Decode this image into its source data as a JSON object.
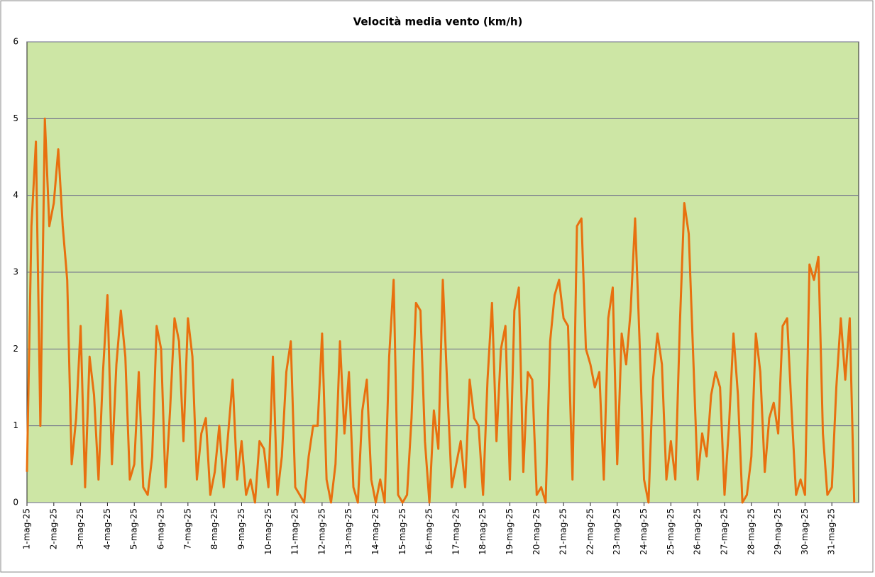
{
  "chart_data": {
    "type": "line",
    "title": "Velocità  media vento (km/h)",
    "categories": [
      "1-mag-25",
      null,
      null,
      null,
      null,
      null,
      "2-mag-25",
      null,
      null,
      null,
      null,
      null,
      "3-mag-25",
      null,
      null,
      null,
      null,
      null,
      "4-mag-25",
      null,
      null,
      null,
      null,
      null,
      "5-mag-25",
      null,
      null,
      null,
      null,
      null,
      "6-mag-25",
      null,
      null,
      null,
      null,
      null,
      "7-mag-25",
      null,
      null,
      null,
      null,
      null,
      "8-mag-25",
      null,
      null,
      null,
      null,
      null,
      "9-mag-25",
      null,
      null,
      null,
      null,
      null,
      "10-mag-25",
      null,
      null,
      null,
      null,
      null,
      "11-mag-25",
      null,
      null,
      null,
      null,
      null,
      "12-mag-25",
      null,
      null,
      null,
      null,
      null,
      "13-mag-25",
      null,
      null,
      null,
      null,
      null,
      "14-mag-25",
      null,
      null,
      null,
      null,
      null,
      "15-mag-25",
      null,
      null,
      null,
      null,
      null,
      "16-mag-25",
      null,
      null,
      null,
      null,
      null,
      "17-mag-25",
      null,
      null,
      null,
      null,
      null,
      "18-mag-25",
      null,
      null,
      null,
      null,
      null,
      "19-mag-25",
      null,
      null,
      null,
      null,
      null,
      "20-mag-25",
      null,
      null,
      null,
      null,
      null,
      "21-mag-25",
      null,
      null,
      null,
      null,
      null,
      "22-mag-25",
      null,
      null,
      null,
      null,
      null,
      "23-mag-25",
      null,
      null,
      null,
      null,
      null,
      "24-mag-25",
      null,
      null,
      null,
      null,
      null,
      "25-mag-25",
      null,
      null,
      null,
      null,
      null,
      "26-mag-25",
      null,
      null,
      null,
      null,
      null,
      "27-mag-25",
      null,
      null,
      null,
      null,
      null,
      "28-mag-25",
      null,
      null,
      null,
      null,
      null,
      "29-mag-25",
      null,
      null,
      null,
      null,
      null,
      "30-mag-25",
      null,
      null,
      null,
      null,
      null,
      "31-mag-25",
      null,
      null,
      null,
      null,
      null
    ],
    "values": [
      0.4,
      3.6,
      4.7,
      1.0,
      5.0,
      3.6,
      3.9,
      4.6,
      3.6,
      2.9,
      0.5,
      1.1,
      2.3,
      0.2,
      1.9,
      1.4,
      0.3,
      1.7,
      2.7,
      0.5,
      1.8,
      2.5,
      1.9,
      0.3,
      0.5,
      1.7,
      0.2,
      0.1,
      0.6,
      2.3,
      2.0,
      0.2,
      1.2,
      2.4,
      2.1,
      0.8,
      2.4,
      1.9,
      0.3,
      0.9,
      1.1,
      0.1,
      0.4,
      1.0,
      0.2,
      0.9,
      1.6,
      0.3,
      0.8,
      0.1,
      0.3,
      0.0,
      0.8,
      0.7,
      0.2,
      1.9,
      0.1,
      0.6,
      1.7,
      2.1,
      0.2,
      0.1,
      0.0,
      0.6,
      1.0,
      1.0,
      2.2,
      0.3,
      0.0,
      0.5,
      2.1,
      0.9,
      1.7,
      0.2,
      0.0,
      1.2,
      1.6,
      0.3,
      0.0,
      0.3,
      0.0,
      1.9,
      2.9,
      0.1,
      0.0,
      0.1,
      1.1,
      2.6,
      2.5,
      0.8,
      0.0,
      1.2,
      0.7,
      2.9,
      1.5,
      0.2,
      0.5,
      0.8,
      0.2,
      1.6,
      1.1,
      1.0,
      0.1,
      1.6,
      2.6,
      0.8,
      2.0,
      2.3,
      0.3,
      2.5,
      2.8,
      0.4,
      1.7,
      1.6,
      0.1,
      0.2,
      0.0,
      2.1,
      2.7,
      2.9,
      2.4,
      2.3,
      0.3,
      3.6,
      3.7,
      2.0,
      1.8,
      1.5,
      1.7,
      0.3,
      2.4,
      2.8,
      0.5,
      2.2,
      1.8,
      2.5,
      3.7,
      2.1,
      0.3,
      0.0,
      1.6,
      2.2,
      1.8,
      0.3,
      0.8,
      0.3,
      2.3,
      3.9,
      3.5,
      1.9,
      0.3,
      0.9,
      0.6,
      1.4,
      1.7,
      1.5,
      0.1,
      1.0,
      2.2,
      1.4,
      0.0,
      0.1,
      0.6,
      2.2,
      1.7,
      0.4,
      1.1,
      1.3,
      0.9,
      2.3,
      2.4,
      1.2,
      0.1,
      0.3,
      0.1,
      3.1,
      2.9,
      3.2,
      0.9,
      0.1,
      0.2,
      1.5,
      2.4,
      1.6,
      2.4,
      0.0
    ],
    "color": "#e8700f",
    "ylim": [
      0,
      6
    ],
    "yticks": [
      0,
      1,
      2,
      3,
      4,
      5,
      6
    ],
    "grid": true
  }
}
